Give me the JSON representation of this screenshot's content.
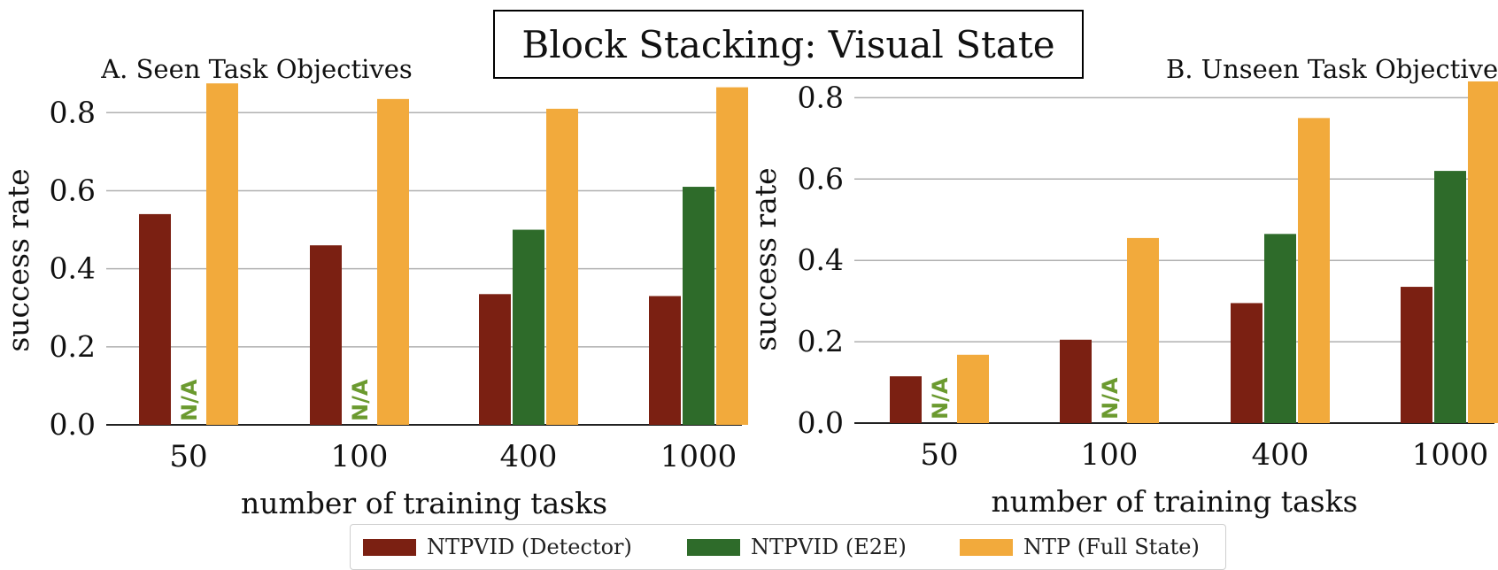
{
  "figure_title": "Block Stacking: Visual State",
  "chart_data": [
    {
      "type": "bar",
      "title": "A. Seen Task Objectives",
      "xlabel": "number of training tasks",
      "ylabel": "success rate",
      "categories": [
        "50",
        "100",
        "400",
        "1000"
      ],
      "ylim": [
        0,
        0.88
      ],
      "yticks": [
        "0.0",
        "0.2",
        "0.4",
        "0.6",
        "0.8"
      ],
      "grid": "horizontal",
      "series": [
        {
          "name": "NTPVID (Detector)",
          "color": "#7b2012",
          "values": [
            0.54,
            0.46,
            0.335,
            0.33
          ]
        },
        {
          "name": "NTPVID (E2E)",
          "color": "#2e6b2a",
          "values": [
            null,
            null,
            0.5,
            0.61
          ]
        },
        {
          "name": "NTP (Full State)",
          "color": "#f2aa3c",
          "values": [
            0.875,
            0.835,
            0.81,
            0.865
          ]
        }
      ],
      "annotations": [
        {
          "text": "N/A",
          "category": "50",
          "series": "NTPVID (E2E)",
          "color": "#6b9a2f"
        },
        {
          "text": "N/A",
          "category": "100",
          "series": "NTPVID (E2E)",
          "color": "#6b9a2f"
        }
      ]
    },
    {
      "type": "bar",
      "title": "B. Unseen Task Objectives",
      "xlabel": "number of training tasks",
      "ylabel": "success rate",
      "categories": [
        "50",
        "100",
        "400",
        "1000"
      ],
      "ylim": [
        0,
        0.84
      ],
      "yticks": [
        "0.0",
        "0.2",
        "0.4",
        "0.6",
        "0.8"
      ],
      "grid": "horizontal",
      "series": [
        {
          "name": "NTPVID (Detector)",
          "color": "#7b2012",
          "values": [
            0.115,
            0.205,
            0.295,
            0.335
          ]
        },
        {
          "name": "NTPVID (E2E)",
          "color": "#2e6b2a",
          "values": [
            null,
            null,
            0.465,
            0.62
          ]
        },
        {
          "name": "NTP (Full State)",
          "color": "#f2aa3c",
          "values": [
            0.168,
            0.455,
            0.75,
            0.84
          ]
        }
      ],
      "annotations": [
        {
          "text": "N/A",
          "category": "50",
          "series": "NTPVID (E2E)",
          "color": "#6b9a2f"
        },
        {
          "text": "N/A",
          "category": "100",
          "series": "NTPVID (E2E)",
          "color": "#6b9a2f"
        }
      ]
    }
  ],
  "legend": {
    "position": "bottom-center",
    "items": [
      {
        "label": "NTPVID (Detector)",
        "color": "#7b2012"
      },
      {
        "label": "NTPVID (E2E)",
        "color": "#2e6b2a"
      },
      {
        "label": "NTP (Full State)",
        "color": "#f2aa3c"
      }
    ]
  }
}
